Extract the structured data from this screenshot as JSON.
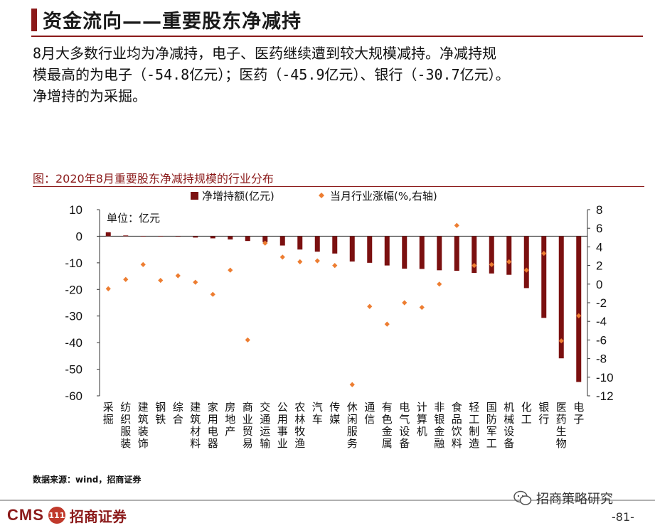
{
  "header": {
    "title": "资金流向——重要股东净减持",
    "description_lines": [
      "8月大多数行业均为净减持，电子、医药继续遭到较大规模减持。净减持规",
      "模最高的为电子（-54.8亿元）；医药（-45.9亿元）、银行（-30.7亿元）。",
      "净增持的为采掘。"
    ]
  },
  "chart_caption": "图：2020年8月重要股东净减持规模的行业分布",
  "chart_data": {
    "type": "bar",
    "unit_label": "单位：亿元",
    "categories": [
      "采掘",
      "纺织服装",
      "建筑装饰",
      "钢铁",
      "综合",
      "建筑材料",
      "家用电器",
      "房地产",
      "商业贸易",
      "交通运输",
      "公用事业",
      "农林牧渔",
      "汽车",
      "传媒",
      "休闲服务",
      "通信",
      "有色金属",
      "电气设备",
      "计算机",
      "非银金融",
      "食品饮料",
      "轻工制造",
      "国防军工",
      "机械设备",
      "化工",
      "银行",
      "医药生物",
      "电子"
    ],
    "series": [
      {
        "name": "净增持额(亿元)",
        "type": "bar",
        "axis": "left",
        "color": "#7b1010",
        "values": [
          1.5,
          0.3,
          0.1,
          0.1,
          0.0,
          -0.5,
          -0.8,
          -1.2,
          -1.8,
          -2.2,
          -3.5,
          -5.0,
          -5.8,
          -6.5,
          -9.5,
          -10.0,
          -11.0,
          -12.2,
          -12.3,
          -12.8,
          -13.0,
          -13.8,
          -14.0,
          -14.5,
          -19.5,
          -30.7,
          -45.9,
          -54.8
        ]
      },
      {
        "name": "当月行业涨幅(%,右轴)",
        "type": "scatter",
        "axis": "right",
        "color": "#ed7d31",
        "values": [
          -0.5,
          0.5,
          2.1,
          0.4,
          0.9,
          0.2,
          -1.1,
          1.5,
          -6.0,
          4.4,
          2.9,
          2.4,
          2.5,
          2.0,
          -10.8,
          -2.4,
          -4.3,
          -2.0,
          -2.5,
          0.0,
          6.3,
          2.0,
          2.1,
          2.4,
          1.5,
          3.3,
          -6.1,
          -3.4
        ]
      }
    ],
    "ylim_left": [
      -60,
      10
    ],
    "yticks_left": [
      "10",
      "0",
      "-10",
      "-20",
      "-30",
      "-40",
      "-50",
      "-60"
    ],
    "ylim_right": [
      -12,
      8
    ],
    "yticks_right": [
      "8",
      "6",
      "4",
      "2",
      "0",
      "-2",
      "-4",
      "-6",
      "-8",
      "-10",
      "-12"
    ],
    "legend_position": "top-center",
    "grid": false
  },
  "footer": {
    "source": "数据来源：wind，招商证券",
    "logo_en": "CMS",
    "logo_mark": "111",
    "logo_cn": "招商证券",
    "watermark": "招商策略研究",
    "page_number": "-81-"
  }
}
